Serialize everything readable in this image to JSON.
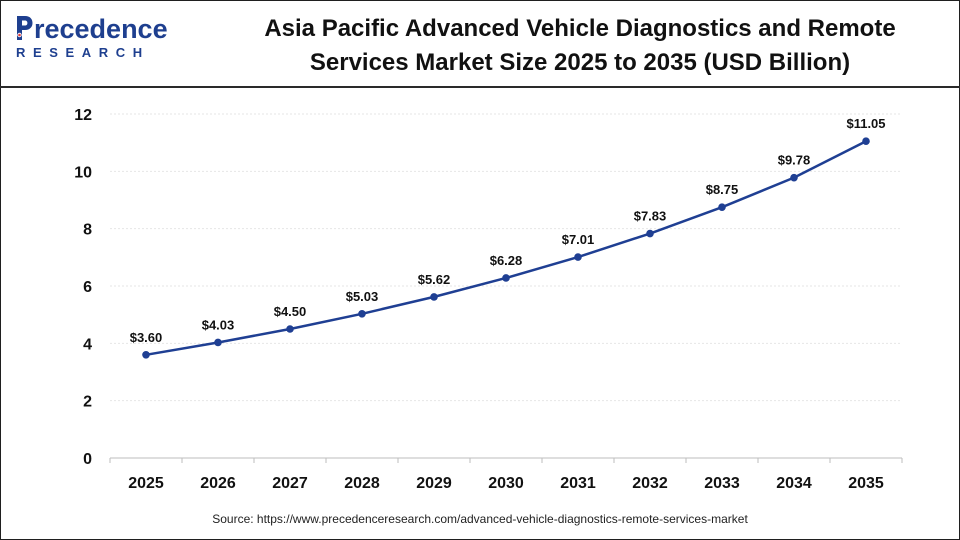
{
  "brand": {
    "name_top": "recedence",
    "name_bottom": "RESEARCH",
    "color": "#1e3f8f"
  },
  "title_line1": "Asia Pacific Advanced Vehicle Diagnostics and Remote",
  "title_line2": "Services Market Size 2025 to 2035 (USD Billion)",
  "source": "Source: https://www.precedenceresearch.com/advanced-vehicle-diagnostics-remote-services-market",
  "chart_data": {
    "type": "line",
    "title": "Asia Pacific Advanced Vehicle Diagnostics and Remote Services Market Size 2025 to 2035 (USD Billion)",
    "x": [
      "2025",
      "2026",
      "2027",
      "2028",
      "2029",
      "2030",
      "2031",
      "2032",
      "2033",
      "2034",
      "2035"
    ],
    "series": [
      {
        "values": [
          3.6,
          4.03,
          4.5,
          5.03,
          5.62,
          6.28,
          7.01,
          7.83,
          8.75,
          9.78,
          11.05
        ],
        "labels": [
          "$3.60",
          "$4.03",
          "$4.50",
          "$5.03",
          "$5.62",
          "$6.28",
          "$7.01",
          "$7.83",
          "$8.75",
          "$9.78",
          "$11.05"
        ],
        "color": "#1f3f93"
      }
    ],
    "ylim": [
      0,
      12
    ],
    "yticks": [
      0,
      2,
      4,
      6,
      8,
      10,
      12
    ],
    "ytick_labels": [
      "0",
      "2",
      "4",
      "6",
      "8",
      "10",
      "12"
    ],
    "grid": true,
    "legend": "none"
  }
}
